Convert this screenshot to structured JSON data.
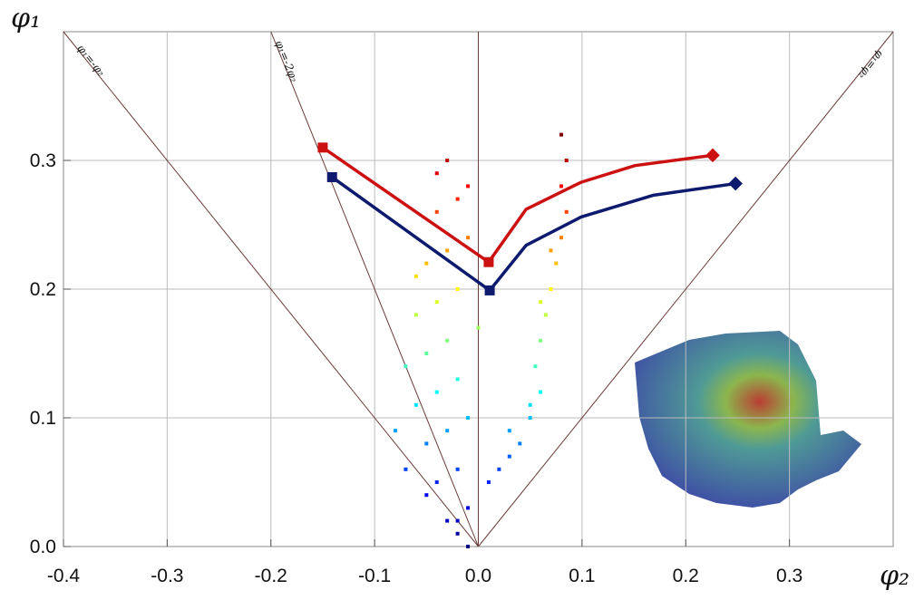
{
  "chart_data": {
    "type": "scatter",
    "x_label": "φ₂",
    "y_label": "φ₁",
    "xlim": [
      -0.4,
      0.4
    ],
    "ylim": [
      0,
      0.4
    ],
    "xticks": [
      -0.4,
      -0.3,
      -0.2,
      -0.1,
      {
        "value": 0,
        "label": "0.0"
      },
      0.1,
      0.2,
      0.3
    ],
    "yticks": [
      {
        "value": 0,
        "label": "0.0"
      },
      0.1,
      0.2,
      0.3
    ],
    "grid": true,
    "annotations": [
      "φ₁=-φ₂",
      "φ₁=-2φ₂",
      "φ₁=φ₂"
    ],
    "points": {
      "x": [
        -0.03,
        -0.02,
        -0.01,
        -0.04,
        -0.02,
        -0.05,
        -0.03,
        -0.01,
        -0.06,
        -0.04,
        -0.02,
        -0.05,
        -0.03,
        0.0,
        -0.06,
        -0.04,
        -0.02,
        -0.05,
        -0.03,
        -0.01,
        -0.04,
        -0.02,
        -0.04,
        -0.03,
        -0.01,
        -0.06,
        -0.07,
        -0.08,
        -0.07,
        -0.05,
        0.01,
        0.02,
        0.03,
        0.04,
        0.05,
        0.06,
        0.055,
        0.06,
        0.065,
        0.07,
        0.075,
        0.08,
        0.085,
        0.08,
        0.085,
        0.08,
        0.07,
        0.06,
        0.05,
        0.03,
        -0.01,
        -0.02
      ],
      "y": [
        0.02,
        0.01,
        0.03,
        0.05,
        0.06,
        0.08,
        0.09,
        0.1,
        0.11,
        0.12,
        0.13,
        0.15,
        0.16,
        0.17,
        0.18,
        0.19,
        0.2,
        0.22,
        0.23,
        0.24,
        0.26,
        0.27,
        0.29,
        0.3,
        0.28,
        0.21,
        0.14,
        0.09,
        0.06,
        0.04,
        0.05,
        0.06,
        0.07,
        0.08,
        0.1,
        0.12,
        0.14,
        0.16,
        0.18,
        0.2,
        0.22,
        0.24,
        0.26,
        0.28,
        0.3,
        0.32,
        0.23,
        0.19,
        0.11,
        0.09,
        0.0,
        0.02
      ]
    },
    "series": [
      {
        "color": "#cc1111",
        "x": [
          -0.15,
          0.01,
          0.046,
          0.099,
          0.151,
          0.226
        ],
        "values": [
          0.31,
          0.221,
          0.262,
          0.283,
          0.296,
          0.304
        ]
      },
      {
        "color": "#0d1a6e",
        "x": [
          -0.141,
          0.011,
          0.046,
          0.099,
          0.169,
          0.248
        ],
        "values": [
          0.287,
          0.199,
          0.234,
          0.256,
          0.273,
          0.282
        ]
      }
    ]
  }
}
